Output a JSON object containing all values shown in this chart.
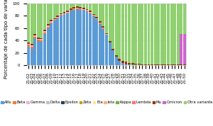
{
  "title": "",
  "ylabel": "Porcentaje de cada tipo de variante",
  "variants": [
    "Alfa",
    "Beta",
    "Gamma",
    "Delta",
    "Epsilon",
    "Zeta",
    "Eta",
    "Iota",
    "Kappa",
    "Lambda",
    "Mu",
    "Omicron",
    "Otra variante"
  ],
  "colors": [
    "#5B9BD5",
    "#ED7D31",
    "#E8B4D8",
    "#C0C0C0",
    "#243F60",
    "#BFA500",
    "#FFE699",
    "#F4B183",
    "#70AD47",
    "#FF7070",
    "#943200",
    "#CC66CC",
    "#90D070"
  ],
  "dates": [
    "21-02",
    "21-03",
    "21-04",
    "21-05",
    "21-06",
    "21-07",
    "21-08",
    "21-09",
    "21-10",
    "21-11",
    "21-12",
    "21-13",
    "21-14",
    "21-15",
    "21-16",
    "21-17",
    "21-18",
    "21-19",
    "21-20",
    "21-21",
    "21-22",
    "21-23",
    "21-24",
    "21-25",
    "21-26",
    "21-27",
    "21-28",
    "21-29",
    "21-30",
    "21-31",
    "21-32",
    "21-33",
    "21-34",
    "21-35",
    "21-36",
    "21-37",
    "21-38",
    "21-39",
    "21-40",
    "21-41",
    "21-42",
    "21-43",
    "21-44",
    "21-45",
    "21-46",
    "21-47",
    "21-48",
    "21-49",
    "21-50"
  ],
  "data": {
    "Alfa": [
      30,
      27,
      44,
      39,
      38,
      51,
      60,
      68,
      72,
      76,
      80,
      82,
      84,
      88,
      90,
      91,
      90,
      89,
      87,
      84,
      79,
      74,
      67,
      59,
      49,
      37,
      24,
      14,
      7,
      3,
      1,
      1,
      0,
      0,
      0,
      0,
      0,
      0,
      0,
      0,
      0,
      0,
      0,
      0,
      0,
      0,
      0,
      0,
      0
    ],
    "Beta": [
      3,
      3,
      2,
      2,
      2,
      2,
      2,
      1,
      1,
      1,
      1,
      1,
      1,
      1,
      1,
      1,
      1,
      1,
      1,
      1,
      1,
      1,
      1,
      1,
      0,
      0,
      0,
      0,
      0,
      0,
      0,
      0,
      0,
      0,
      0,
      0,
      0,
      0,
      0,
      0,
      0,
      0,
      0,
      0,
      0,
      0,
      0,
      0,
      0
    ],
    "Gamma": [
      2,
      2,
      2,
      2,
      2,
      2,
      2,
      2,
      1,
      1,
      1,
      1,
      1,
      1,
      1,
      1,
      1,
      1,
      1,
      1,
      1,
      1,
      1,
      1,
      1,
      0,
      0,
      0,
      0,
      0,
      0,
      0,
      0,
      0,
      0,
      0,
      0,
      0,
      0,
      0,
      0,
      0,
      0,
      0,
      0,
      0,
      0,
      0,
      0
    ],
    "Delta": [
      0,
      0,
      0,
      0,
      0,
      0,
      0,
      0,
      0,
      0,
      0,
      0,
      0,
      0,
      0,
      0,
      0,
      0,
      0,
      0,
      0,
      0,
      0,
      0,
      0,
      0,
      0,
      0,
      0,
      0,
      0,
      0,
      0,
      0,
      0,
      0,
      0,
      0,
      0,
      0,
      0,
      0,
      0,
      0,
      0,
      0,
      0,
      0,
      0
    ],
    "Epsilon": [
      0,
      0,
      0,
      0,
      0,
      0,
      0,
      0,
      0,
      0,
      0,
      0,
      0,
      0,
      0,
      0,
      0,
      0,
      0,
      0,
      0,
      0,
      0,
      0,
      0,
      0,
      0,
      0,
      0,
      0,
      0,
      0,
      0,
      0,
      0,
      0,
      0,
      0,
      0,
      0,
      0,
      0,
      0,
      0,
      0,
      0,
      0,
      0,
      0
    ],
    "Zeta": [
      0,
      0,
      0,
      0,
      0,
      0,
      0,
      0,
      0,
      0,
      0,
      0,
      0,
      0,
      0,
      0,
      0,
      0,
      0,
      0,
      0,
      0,
      0,
      0,
      0,
      0,
      0,
      0,
      0,
      0,
      0,
      0,
      0,
      0,
      0,
      0,
      0,
      0,
      0,
      0,
      0,
      0,
      0,
      0,
      0,
      0,
      0,
      0,
      0
    ],
    "Eta": [
      0,
      0,
      0,
      0,
      0,
      0,
      0,
      0,
      0,
      0,
      0,
      0,
      0,
      0,
      0,
      0,
      0,
      0,
      0,
      0,
      0,
      0,
      0,
      0,
      0,
      0,
      0,
      0,
      0,
      0,
      0,
      0,
      0,
      0,
      0,
      0,
      0,
      0,
      0,
      0,
      0,
      0,
      0,
      0,
      0,
      0,
      0,
      0,
      0
    ],
    "Iota": [
      0,
      0,
      0,
      0,
      0,
      0,
      0,
      0,
      0,
      0,
      0,
      0,
      0,
      0,
      0,
      0,
      0,
      0,
      0,
      0,
      0,
      0,
      0,
      0,
      0,
      0,
      0,
      0,
      0,
      0,
      0,
      0,
      0,
      0,
      0,
      0,
      0,
      0,
      0,
      0,
      0,
      0,
      0,
      0,
      0,
      0,
      0,
      0,
      0
    ],
    "Kappa": [
      0,
      0,
      0,
      0,
      0,
      0,
      0,
      0,
      0,
      0,
      0,
      0,
      0,
      0,
      0,
      0,
      0,
      0,
      0,
      0,
      0,
      0,
      0,
      0,
      0,
      0,
      0,
      0,
      0,
      0,
      0,
      0,
      1,
      1,
      1,
      0,
      0,
      0,
      0,
      0,
      0,
      0,
      0,
      0,
      0,
      0,
      0,
      0,
      0
    ],
    "Lambda": [
      0,
      0,
      0,
      0,
      0,
      0,
      0,
      0,
      0,
      0,
      0,
      0,
      0,
      0,
      0,
      0,
      0,
      0,
      0,
      0,
      0,
      0,
      0,
      0,
      0,
      0,
      0,
      0,
      0,
      0,
      0,
      0,
      0,
      0,
      0,
      0,
      0,
      0,
      0,
      0,
      0,
      0,
      0,
      0,
      0,
      0,
      0,
      0,
      0
    ],
    "Mu": [
      2,
      2,
      2,
      2,
      2,
      2,
      2,
      2,
      2,
      2,
      2,
      2,
      2,
      2,
      2,
      2,
      2,
      2,
      2,
      2,
      2,
      2,
      2,
      2,
      2,
      2,
      2,
      2,
      3,
      4,
      5,
      3,
      2,
      1,
      1,
      1,
      1,
      1,
      1,
      1,
      1,
      1,
      1,
      1,
      1,
      1,
      1,
      1,
      1
    ],
    "Omicron": [
      0,
      0,
      0,
      0,
      0,
      0,
      0,
      0,
      0,
      0,
      0,
      0,
      0,
      0,
      0,
      0,
      0,
      0,
      0,
      0,
      0,
      0,
      0,
      0,
      0,
      0,
      0,
      0,
      0,
      0,
      0,
      0,
      0,
      0,
      0,
      0,
      0,
      0,
      0,
      0,
      0,
      0,
      0,
      0,
      0,
      0,
      0,
      50,
      50
    ],
    "Otra variante": [
      63,
      66,
      50,
      55,
      56,
      43,
      34,
      27,
      24,
      20,
      16,
      14,
      12,
      8,
      6,
      5,
      7,
      7,
      9,
      12,
      17,
      22,
      29,
      39,
      48,
      61,
      74,
      84,
      90,
      93,
      94,
      96,
      97,
      98,
      98,
      99,
      99,
      99,
      99,
      99,
      99,
      99,
      99,
      99,
      99,
      99,
      99,
      49,
      49
    ]
  },
  "background_color": "#ffffff",
  "grid_color": "#e0e0e0",
  "ylim": [
    0,
    100
  ],
  "tick_fontsize": 4.0,
  "label_fontsize": 5.0,
  "legend_fontsize": 3.8
}
